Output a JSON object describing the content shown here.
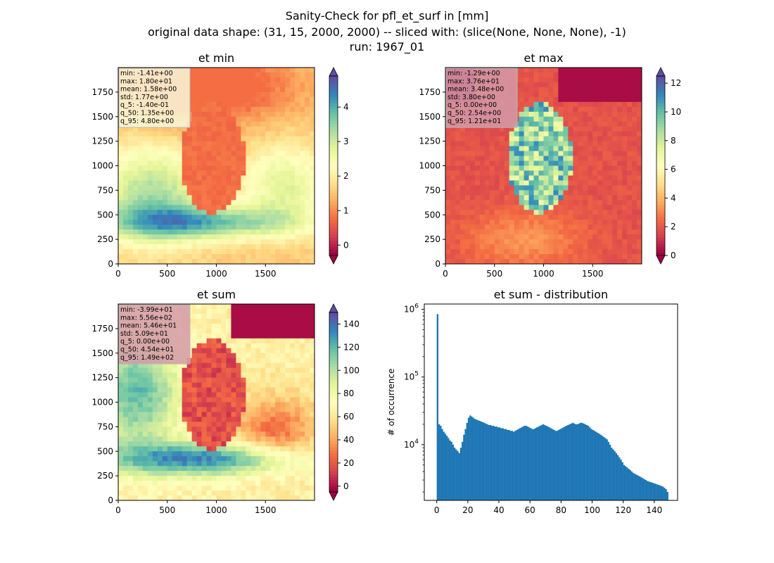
{
  "figure": {
    "title_line1": "Sanity-Check for pfl_et_surf in [mm]",
    "title_line2": "original data shape: (31, 15, 2000, 2000) -- sliced with: (slice(None, None, None), -1)",
    "title_line3": "run: 1967_01"
  },
  "chart_data": [
    {
      "type": "heatmap",
      "title": "et min",
      "colormap": "Spectral",
      "colormap_colors": [
        "#9e0142",
        "#d53e4f",
        "#f46d43",
        "#fdae61",
        "#fee08b",
        "#ffffbf",
        "#e6f598",
        "#abdda4",
        "#66c2a5",
        "#3288bd",
        "#5e4fa2"
      ],
      "xlim": [
        0,
        2000
      ],
      "ylim": [
        0,
        2000
      ],
      "x_ticks": [
        "0",
        "500",
        "1000",
        "1500"
      ],
      "y_ticks": [
        "0",
        "250",
        "500",
        "750",
        "1000",
        "1250",
        "1500",
        "1750"
      ],
      "colorbar_range": [
        -0.3,
        4.9
      ],
      "colorbar_ticks": [
        "0",
        "1",
        "2",
        "3",
        "4"
      ],
      "stats": [
        "min: -1.41e+00",
        "max: 1.80e+01",
        "mean: 1.58e+00",
        "std: 1.77e+00",
        "q_5: -1.40e-01",
        "q_50: 1.35e+00",
        "q_95: 4.80e+00"
      ],
      "stats_box_color": "#f8f8d8"
    },
    {
      "type": "heatmap",
      "title": "et max",
      "colormap": "Spectral",
      "xlim": [
        0,
        2000
      ],
      "ylim": [
        0,
        2000
      ],
      "x_ticks": [
        "0",
        "500",
        "1000",
        "1500"
      ],
      "y_ticks": [
        "0",
        "250",
        "500",
        "750",
        "1000",
        "1250",
        "1500",
        "1750"
      ],
      "colorbar_range": [
        0,
        12.5
      ],
      "colorbar_ticks": [
        "0",
        "2",
        "4",
        "6",
        "8",
        "10",
        "12"
      ],
      "stats": [
        "min: -1.29e+00",
        "max: 3.76e+01",
        "mean: 3.48e+00",
        "std: 3.80e+00",
        "q_5: 0.00e+00",
        "q_50: 2.54e+00",
        "q_95: 1.21e+01"
      ],
      "stats_box_color": "#d49aa8"
    },
    {
      "type": "heatmap",
      "title": "et sum",
      "colormap": "Spectral",
      "xlim": [
        0,
        2000
      ],
      "ylim": [
        0,
        2000
      ],
      "x_ticks": [
        "0",
        "500",
        "1000",
        "1500"
      ],
      "y_ticks": [
        "0",
        "250",
        "500",
        "750",
        "1000",
        "1250",
        "1500",
        "1750"
      ],
      "colorbar_range": [
        -5,
        150
      ],
      "colorbar_ticks": [
        "0",
        "20",
        "40",
        "60",
        "80",
        "100",
        "120",
        "140"
      ],
      "stats": [
        "min: -3.99e+01",
        "max: 5.56e+02",
        "mean: 5.46e+01",
        "std: 5.09e+01",
        "q_5: 0.00e+00",
        "q_50: 4.54e+01",
        "q_95: 1.49e+02"
      ],
      "stats_box_color": "#d49aa8"
    },
    {
      "type": "bar",
      "title": "et sum - distribution",
      "ylabel": "# of occurrence",
      "yscale": "log",
      "bar_color": "#1f77b4",
      "xlim": [
        -8,
        155
      ],
      "ylim": [
        1500,
        1200000
      ],
      "x_ticks": [
        0,
        20,
        40,
        60,
        80,
        100,
        120,
        140
      ],
      "y_ticks": [
        {
          "value": 10000,
          "base": "10",
          "exp": "4"
        },
        {
          "value": 100000,
          "base": "10",
          "exp": "5"
        },
        {
          "value": 1000000,
          "base": "10",
          "exp": "6"
        }
      ],
      "bin_width": 1,
      "x": [
        0,
        1,
        2,
        3,
        4,
        5,
        6,
        7,
        8,
        9,
        10,
        11,
        12,
        13,
        14,
        15,
        16,
        17,
        18,
        19,
        20,
        21,
        22,
        23,
        24,
        25,
        26,
        27,
        28,
        29,
        30,
        31,
        32,
        33,
        34,
        35,
        36,
        37,
        38,
        39,
        40,
        41,
        42,
        43,
        44,
        45,
        46,
        47,
        48,
        49,
        50,
        51,
        52,
        53,
        54,
        55,
        56,
        57,
        58,
        59,
        60,
        61,
        62,
        63,
        64,
        65,
        66,
        67,
        68,
        69,
        70,
        71,
        72,
        73,
        74,
        75,
        76,
        77,
        78,
        79,
        80,
        81,
        82,
        83,
        84,
        85,
        86,
        87,
        88,
        89,
        90,
        91,
        92,
        93,
        94,
        95,
        96,
        97,
        98,
        99,
        100,
        101,
        102,
        103,
        104,
        105,
        106,
        107,
        108,
        109,
        110,
        111,
        112,
        113,
        114,
        115,
        116,
        117,
        118,
        119,
        120,
        121,
        122,
        123,
        124,
        125,
        126,
        127,
        128,
        129,
        130,
        131,
        132,
        133,
        134,
        135,
        136,
        137,
        138,
        139,
        140,
        141,
        142,
        143,
        144,
        145,
        146,
        147,
        148
      ],
      "values": [
        850000,
        20000,
        19000,
        17000,
        15500,
        14500,
        13500,
        12500,
        11500,
        11000,
        10000,
        9000,
        8500,
        8000,
        7500,
        9000,
        11000,
        14000,
        17000,
        21000,
        25000,
        27000,
        26000,
        25000,
        24000,
        23500,
        23000,
        22500,
        22000,
        21500,
        21000,
        20500,
        20000,
        19500,
        19500,
        19000,
        19000,
        18500,
        18500,
        18000,
        18000,
        17500,
        17500,
        17000,
        17000,
        16500,
        16500,
        16000,
        16000,
        15500,
        16000,
        16500,
        17000,
        17500,
        18000,
        18500,
        19000,
        19000,
        18500,
        18000,
        17500,
        17000,
        17000,
        17500,
        18000,
        18500,
        19000,
        19500,
        20000,
        19500,
        19000,
        18500,
        18000,
        17500,
        17000,
        16500,
        16000,
        16000,
        16500,
        17000,
        17500,
        18000,
        18500,
        19000,
        19500,
        20000,
        20500,
        21000,
        20500,
        20000,
        20000,
        20500,
        21000,
        21000,
        20500,
        20000,
        19500,
        19000,
        18000,
        17000,
        16500,
        16000,
        15500,
        15000,
        14500,
        14000,
        13500,
        13000,
        12500,
        12000,
        11000,
        10000,
        9000,
        8500,
        8000,
        7500,
        7000,
        6500,
        6000,
        5500,
        5000,
        4800,
        4600,
        4400,
        4200,
        4000,
        3800,
        3700,
        3600,
        3500,
        3400,
        3300,
        3200,
        3100,
        3000,
        2900,
        2850,
        2800,
        2750,
        2700,
        2650,
        2600,
        2550,
        2500,
        2450,
        2400,
        2300,
        2200,
        2000
      ]
    }
  ]
}
